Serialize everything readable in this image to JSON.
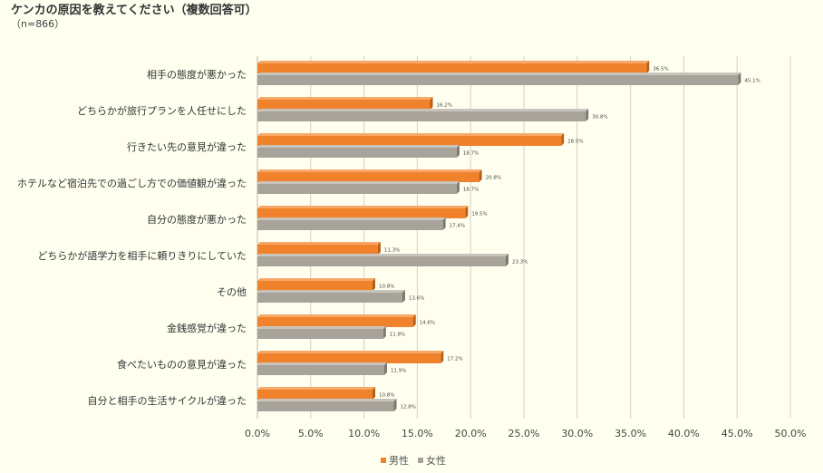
{
  "title": "ケンカの原因を教えてください（複数回答可）",
  "subtitle": "（n=866）",
  "colors": {
    "male": "#f0822c",
    "female": "#a8a39a",
    "grid": "#d9cfc0",
    "background": "#fffff0"
  },
  "chart_data": {
    "type": "bar",
    "orientation": "horizontal",
    "categories": [
      "相手の態度が悪かった",
      "どちらかが旅行プランを人任せにした",
      "行きたい先の意見が違った",
      "ホテルなど宿泊先での過ごし方での価値観が違った",
      "自分の態度が悪かった",
      "どちらかが語学力を相手に頼りきりにしていた",
      "その他",
      "金銭感覚が違った",
      "食べたいものの意見が違った",
      "自分と相手の生活サイクルが違った"
    ],
    "series": [
      {
        "name": "男性",
        "values": [
          36.5,
          16.2,
          28.5,
          20.8,
          19.5,
          11.3,
          10.8,
          14.6,
          17.2,
          10.8
        ],
        "labels": [
          "36.5%",
          "16.2%",
          "28.5%",
          "20.8%",
          "19.5%",
          "11.3%",
          "10.8%",
          "14.6%",
          "17.2%",
          "10.8%"
        ]
      },
      {
        "name": "女性",
        "values": [
          45.1,
          30.8,
          18.7,
          18.7,
          17.4,
          23.3,
          13.6,
          11.8,
          11.9,
          12.8
        ],
        "labels": [
          "45.1%",
          "30.8%",
          "18.7%",
          "18.7%",
          "17.4%",
          "23.3%",
          "13.6%",
          "11.8%",
          "11.9%",
          "12.8%"
        ]
      }
    ],
    "xlim": [
      0,
      50
    ],
    "xticks": [
      "0.0%",
      "5.0%",
      "10.0%",
      "15.0%",
      "20.0%",
      "25.0%",
      "30.0%",
      "35.0%",
      "40.0%",
      "45.0%",
      "50.0%"
    ],
    "grid": true,
    "legend_position": "bottom"
  }
}
